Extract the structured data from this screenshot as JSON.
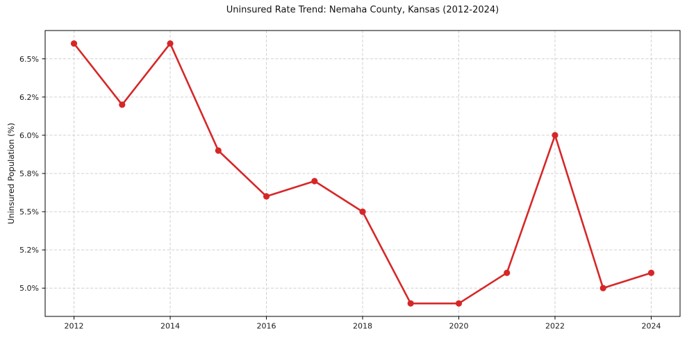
{
  "chart_data": {
    "type": "line",
    "title": "Uninsured Rate Trend: Nemaha County, Kansas (2012-2024)",
    "xlabel": "",
    "ylabel": "Uninsured Population (%)",
    "x": [
      2012,
      2013,
      2014,
      2015,
      2016,
      2017,
      2018,
      2019,
      2020,
      2021,
      2022,
      2023,
      2024
    ],
    "values": [
      6.6,
      6.2,
      6.6,
      5.9,
      5.6,
      5.7,
      5.5,
      4.9,
      4.9,
      5.1,
      6.0,
      5.0,
      5.1
    ],
    "x_ticks": [
      2012,
      2014,
      2016,
      2018,
      2020,
      2022,
      2024
    ],
    "x_tick_labels": [
      "2012",
      "2014",
      "2016",
      "2018",
      "2020",
      "2022",
      "2024"
    ],
    "y_ticks": [
      5.0,
      5.25,
      5.5,
      5.75,
      6.0,
      6.25,
      6.5
    ],
    "y_tick_labels": [
      "5.0%",
      "5.2%",
      "5.5%",
      "5.8%",
      "6.0%",
      "6.2%",
      "6.5%"
    ],
    "xlim": [
      2011.4,
      2024.6
    ],
    "ylim": [
      4.815,
      6.685
    ],
    "grid": true,
    "grid_style": "dashed",
    "legend": false,
    "colors": {
      "line": "#d62728",
      "marker": "#d62728",
      "grid": "#cfcfcf",
      "spine": "#000000",
      "tick_text": "#1a1a1a",
      "background": "#ffffff"
    }
  }
}
